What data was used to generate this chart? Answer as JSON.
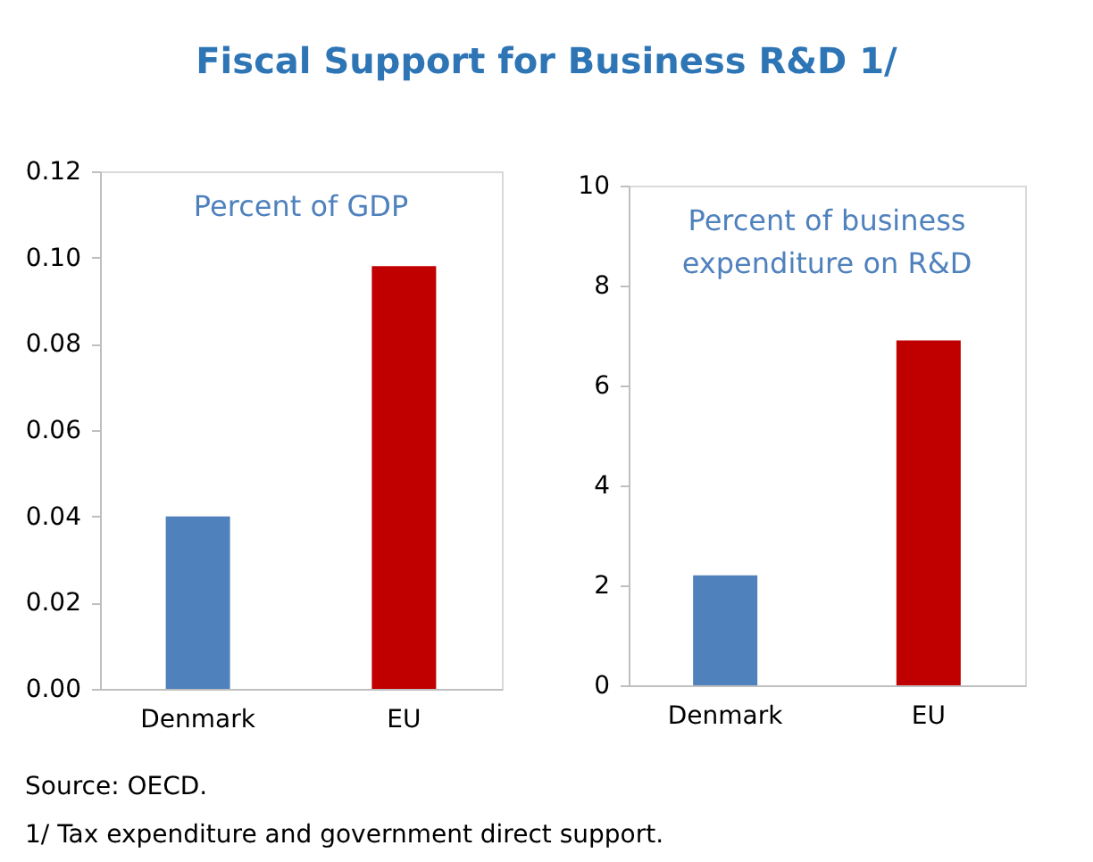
{
  "chart_data": [
    {
      "type": "bar",
      "title": "Fiscal Support for Business R&D 1/",
      "subtitle": "Percent of GDP",
      "categories": [
        "Denmark",
        "EU"
      ],
      "values": [
        0.04,
        0.098
      ],
      "colors": [
        "#4f81bd",
        "#c00000"
      ],
      "ylim": [
        0,
        0.12
      ],
      "yticks": [
        {
          "value": 0,
          "label": "0.00"
        },
        {
          "value": 0.02,
          "label": "0.02"
        },
        {
          "value": 0.04,
          "label": "0.04"
        },
        {
          "value": 0.06,
          "label": "0.06"
        },
        {
          "value": 0.08,
          "label": "0.08"
        },
        {
          "value": 0.1,
          "label": "0.10"
        },
        {
          "value": 0.12,
          "label": "0.12"
        }
      ],
      "annotations": [
        "Source: OECD.",
        "1/ Tax expenditure and government direct support."
      ]
    },
    {
      "type": "bar",
      "subtitle": "Percent of business\nexpenditure on R&D",
      "categories": [
        "Denmark",
        "EU"
      ],
      "values": [
        2.2,
        6.9
      ],
      "colors": [
        "#4f81bd",
        "#c00000"
      ],
      "ylim": [
        0,
        10
      ],
      "yticks": [
        0,
        2,
        4,
        6,
        8,
        10
      ]
    }
  ]
}
